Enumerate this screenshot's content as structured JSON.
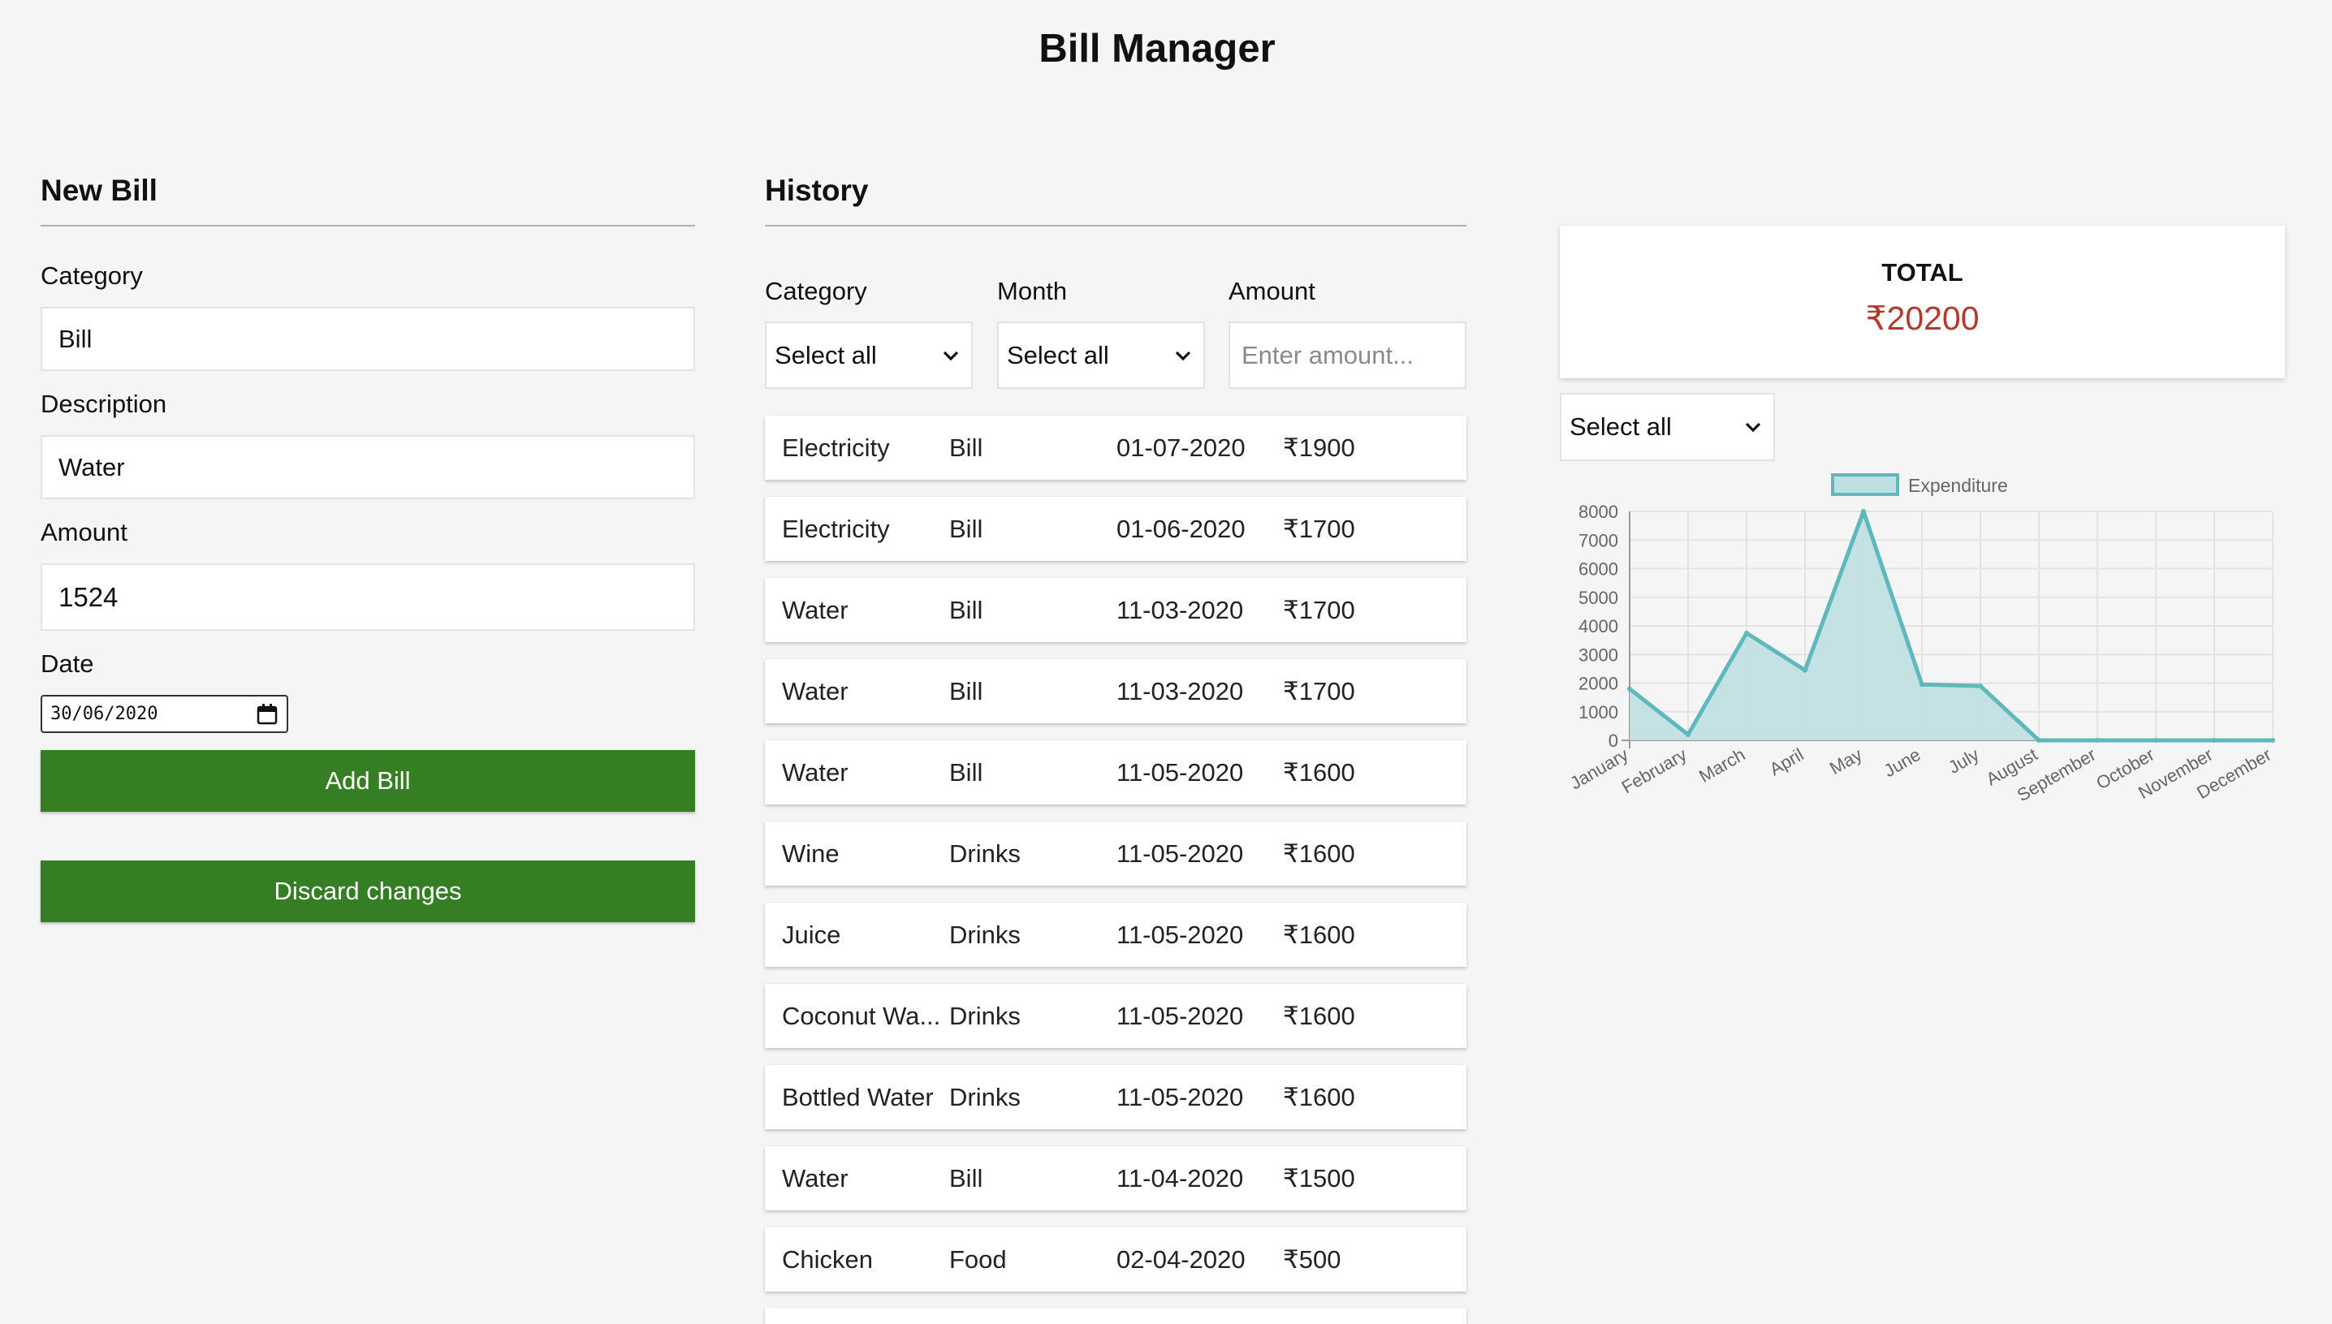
{
  "app": {
    "title": "Bill Manager"
  },
  "new_bill": {
    "heading": "New Bill",
    "category_label": "Category",
    "category_value": "Bill",
    "description_label": "Description",
    "description_value": "Water",
    "amount_label": "Amount",
    "amount_value": "1524",
    "date_label": "Date",
    "date_value": "30/06/2020",
    "add_button": "Add Bill",
    "discard_button": "Discard changes"
  },
  "history": {
    "heading": "History",
    "filters": {
      "category_label": "Category",
      "category_value": "Select all",
      "month_label": "Month",
      "month_value": "Select all",
      "amount_label": "Amount",
      "amount_placeholder": "Enter amount..."
    },
    "rows": [
      {
        "description": "Electricity",
        "category": "Bill",
        "date": "01-07-2020",
        "amount": "₹1900"
      },
      {
        "description": "Electricity",
        "category": "Bill",
        "date": "01-06-2020",
        "amount": "₹1700"
      },
      {
        "description": "Water",
        "category": "Bill",
        "date": "11-03-2020",
        "amount": "₹1700"
      },
      {
        "description": "Water",
        "category": "Bill",
        "date": "11-03-2020",
        "amount": "₹1700"
      },
      {
        "description": "Water",
        "category": "Bill",
        "date": "11-05-2020",
        "amount": "₹1600"
      },
      {
        "description": "Wine",
        "category": "Drinks",
        "date": "11-05-2020",
        "amount": "₹1600"
      },
      {
        "description": "Juice",
        "category": "Drinks",
        "date": "11-05-2020",
        "amount": "₹1600"
      },
      {
        "description": "Coconut Wa...",
        "category": "Drinks",
        "date": "11-05-2020",
        "amount": "₹1600"
      },
      {
        "description": "Bottled Water",
        "category": "Drinks",
        "date": "11-05-2020",
        "amount": "₹1600"
      },
      {
        "description": "Water",
        "category": "Bill",
        "date": "11-04-2020",
        "amount": "₹1500"
      },
      {
        "description": "Chicken",
        "category": "Food",
        "date": "02-04-2020",
        "amount": "₹500"
      }
    ]
  },
  "summary": {
    "total_label": "TOTAL",
    "total_value": "₹20200",
    "total_color": "#b03a2e",
    "category_select_value": "Select all"
  },
  "colors": {
    "button_green": "#367e24",
    "chart_line": "#5eb8bc",
    "chart_fill": "#bfe0e1"
  },
  "chart_data": {
    "type": "area",
    "categories": [
      "January",
      "February",
      "March",
      "April",
      "May",
      "June",
      "July",
      "August",
      "September",
      "October",
      "November",
      "December"
    ],
    "series": [
      {
        "name": "Expenditure",
        "values": [
          1800,
          200,
          3750,
          2450,
          8000,
          1950,
          1900,
          0,
          0,
          0,
          0,
          0
        ]
      }
    ],
    "ylim": [
      0,
      8000
    ],
    "yticks": [
      0,
      1000,
      2000,
      3000,
      4000,
      5000,
      6000,
      7000,
      8000
    ],
    "grid": true,
    "legend": "top"
  }
}
